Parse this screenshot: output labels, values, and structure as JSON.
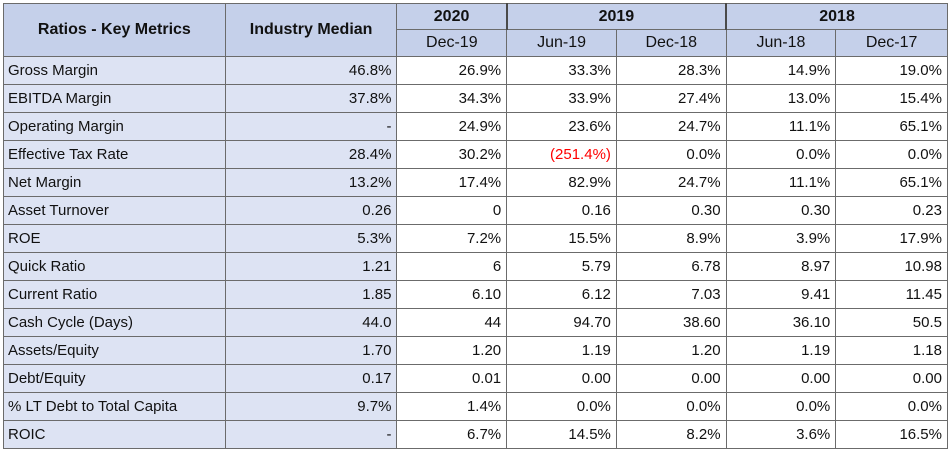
{
  "table": {
    "header": {
      "metric_label": "Ratios - Key Metrics",
      "median_label": "Industry Median",
      "years": [
        {
          "label": "2020",
          "span": 1
        },
        {
          "label": "2019",
          "span": 2
        },
        {
          "label": "2018",
          "span": 2
        }
      ],
      "periods": [
        "Dec-19",
        "Jun-19",
        "Dec-18",
        "Jun-18",
        "Dec-17"
      ]
    },
    "rows": [
      {
        "label": "Gross Margin",
        "median": "46.8%",
        "values": [
          "26.9%",
          "33.3%",
          "28.3%",
          "14.9%",
          "19.0%"
        ]
      },
      {
        "label": "EBITDA Margin",
        "median": "37.8%",
        "values": [
          "34.3%",
          "33.9%",
          "27.4%",
          "13.0%",
          "15.4%"
        ]
      },
      {
        "label": "Operating Margin",
        "median": "-",
        "values": [
          "24.9%",
          "23.6%",
          "24.7%",
          "11.1%",
          "65.1%"
        ]
      },
      {
        "label": "Effective Tax Rate",
        "median": "28.4%",
        "values": [
          "30.2%",
          "(251.4%)",
          "0.0%",
          "0.0%",
          "0.0%"
        ]
      },
      {
        "label": "Net Margin",
        "median": "13.2%",
        "values": [
          "17.4%",
          "82.9%",
          "24.7%",
          "11.1%",
          "65.1%"
        ]
      },
      {
        "label": "Asset Turnover",
        "median": "0.26",
        "values": [
          "0",
          "0.16",
          "0.30",
          "0.30",
          "0.23"
        ]
      },
      {
        "label": "ROE",
        "median": "5.3%",
        "values": [
          "7.2%",
          "15.5%",
          "8.9%",
          "3.9%",
          "17.9%"
        ]
      },
      {
        "label": "Quick Ratio",
        "median": "1.21",
        "values": [
          "6",
          "5.79",
          "6.78",
          "8.97",
          "10.98"
        ]
      },
      {
        "label": "Current Ratio",
        "median": "1.85",
        "values": [
          "6.10",
          "6.12",
          "7.03",
          "9.41",
          "11.45"
        ]
      },
      {
        "label": "Cash Cycle (Days)",
        "median": "44.0",
        "values": [
          "44",
          "94.70",
          "38.60",
          "36.10",
          "50.5"
        ]
      },
      {
        "label": "Assets/Equity",
        "median": "1.70",
        "values": [
          "1.20",
          "1.19",
          "1.20",
          "1.19",
          "1.18"
        ]
      },
      {
        "label": "Debt/Equity",
        "median": "0.17",
        "values": [
          "0.01",
          "0.00",
          "0.00",
          "0.00",
          "0.00"
        ]
      },
      {
        "label": "% LT Debt to Total Capita",
        "median": "9.7%",
        "values": [
          "1.4%",
          "0.0%",
          "0.0%",
          "0.0%",
          "0.0%"
        ]
      },
      {
        "label": "ROIC",
        "median": "-",
        "values": [
          "6.7%",
          "14.5%",
          "8.2%",
          "3.6%",
          "16.5%"
        ]
      }
    ],
    "colors": {
      "header_bg": "#c5d0ea",
      "label_bg": "#dde3f3",
      "value_bg": "#ffffff",
      "negative_text": "#ff0000",
      "grid": "#6b6b6b"
    }
  }
}
